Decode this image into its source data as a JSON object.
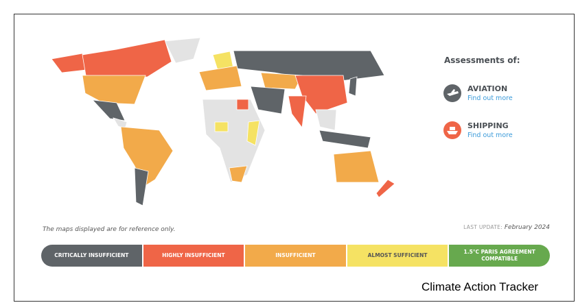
{
  "panel": {
    "heading": "Assessments of:",
    "items": [
      {
        "title": "AVIATION",
        "link": "Find out more"
      },
      {
        "title": "SHIPPING",
        "link": "Find out more"
      }
    ]
  },
  "map_note": "The maps displayed are for reference only.",
  "last_update": {
    "label": "LAST UPDATE:",
    "date": "February 2024"
  },
  "legend": [
    {
      "label": "CRITICALLY INSUFFICIENT",
      "color": "#5f6468",
      "text_color": "#ffffff"
    },
    {
      "label": "HIGHLY INSUFFICIENT",
      "color": "#ef6547",
      "text_color": "#ffffff"
    },
    {
      "label": "INSUFFICIENT",
      "color": "#f2aa4a",
      "text_color": "#ffffff"
    },
    {
      "label": "ALMOST SUFFICIENT",
      "color": "#f5e263",
      "text_color": "#555555"
    },
    {
      "label": "1.5°C PARIS AGREEMENT COMPATIBLE",
      "color": "#67a94e",
      "text_color": "#ffffff"
    }
  ],
  "footer": "Climate Action Tracker"
}
